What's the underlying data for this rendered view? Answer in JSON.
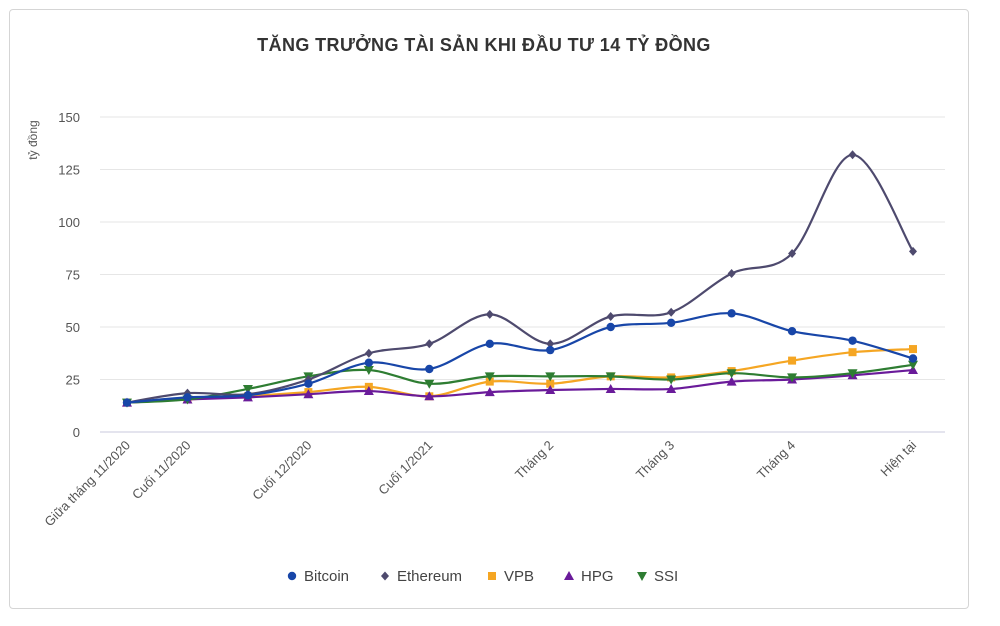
{
  "chart_data": {
    "type": "line",
    "title": "TĂNG TRƯỞNG TÀI SẢN KHI ĐẦU TƯ 14 TỶ ĐỒNG",
    "xlabel": "",
    "ylabel": "tỷ đồng",
    "ylim": [
      0,
      150
    ],
    "yticks": [
      "150",
      "125",
      "100",
      "75",
      "50",
      "25",
      "0"
    ],
    "ytick_values": [
      150,
      125,
      100,
      75,
      50,
      25,
      0
    ],
    "categories": [
      "Giữa tháng 11/2020",
      "Cuối 11/2020",
      "",
      "Cuối 12/2020",
      "",
      "Cuối 1/2021",
      "",
      "Tháng 2",
      "",
      "Tháng 3",
      "",
      "Tháng 4",
      "",
      "Hiện tại"
    ],
    "x_labels": [
      "Giữa tháng 11/2020",
      "Cuối 11/2020",
      "Cuối 12/2020",
      "Cuối 1/2021",
      "Tháng 2",
      "Tháng 3",
      "Tháng 4",
      "Hiện tại"
    ],
    "x_label_indices": [
      0,
      1,
      3,
      5,
      7,
      9,
      11,
      13
    ],
    "series": [
      {
        "name": "Bitcoin",
        "color": "#1846a8",
        "marker": "circle",
        "values": [
          14,
          16.5,
          17.5,
          23,
          33,
          30,
          42,
          39,
          50,
          52,
          56.5,
          48,
          43.5,
          35
        ]
      },
      {
        "name": "Ethereum",
        "color": "#4e4a6e",
        "marker": "diamond",
        "values": [
          14,
          18.5,
          18,
          25,
          37.5,
          42,
          56,
          42,
          55,
          57,
          75.5,
          85,
          132,
          86
        ]
      },
      {
        "name": "VPB",
        "color": "#f5a623",
        "marker": "square",
        "values": [
          14,
          15.5,
          17,
          19,
          21.5,
          17,
          24,
          23,
          26.5,
          26,
          29,
          34,
          38,
          39.5
        ]
      },
      {
        "name": "HPG",
        "color": "#6a1b9a",
        "marker": "triangle-up",
        "values": [
          14,
          15.5,
          16.5,
          18,
          19.5,
          17,
          19,
          20,
          20.5,
          20.5,
          24,
          25,
          27,
          29.5
        ]
      },
      {
        "name": "SSI",
        "color": "#2e7d32",
        "marker": "triangle-down",
        "values": [
          14,
          15.5,
          20.5,
          26.5,
          29.5,
          23,
          26.5,
          26.5,
          26.5,
          25,
          28,
          26,
          28,
          32
        ]
      }
    ],
    "grid": true,
    "legend_position": "bottom"
  }
}
